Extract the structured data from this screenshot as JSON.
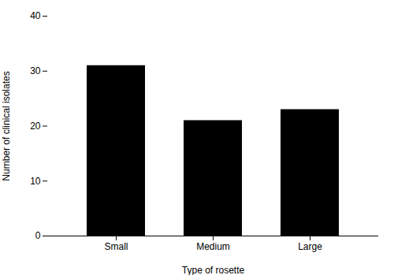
{
  "chart_data": {
    "type": "bar",
    "categories": [
      "Small",
      "Medium",
      "Large"
    ],
    "values": [
      31,
      21,
      23
    ],
    "xlabel": "Type of rosette",
    "ylabel": "Number of clinical isolates",
    "ylim": [
      0,
      40
    ],
    "yticks": [
      0,
      10,
      20,
      30,
      40
    ]
  }
}
